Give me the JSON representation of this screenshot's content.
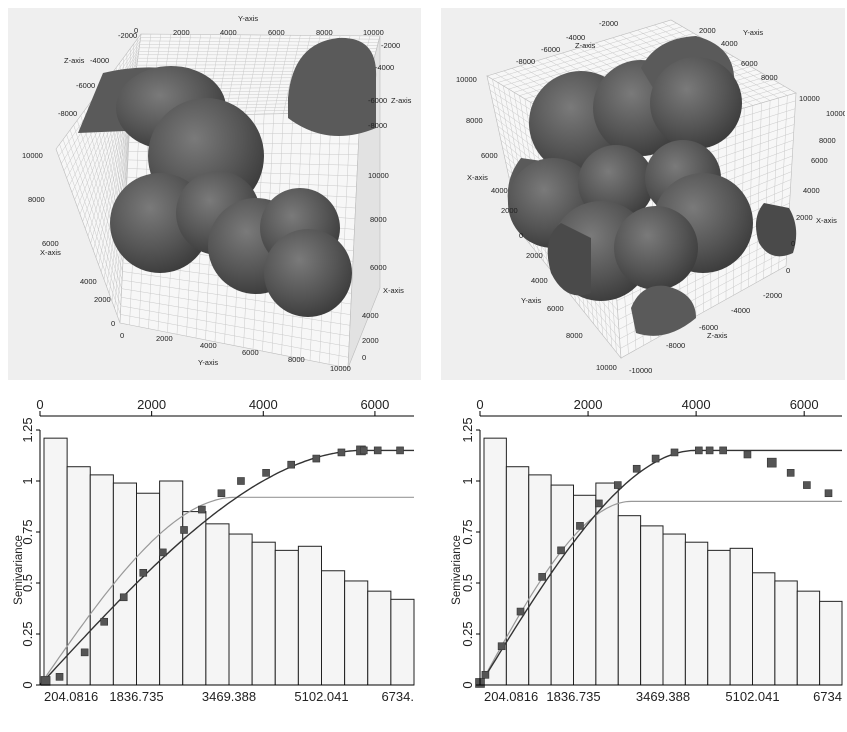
{
  "chart_data": [
    {
      "type": "scatter3d",
      "panel": "top-left",
      "axis_titles": {
        "x": "X-axis",
        "y": "Y-axis",
        "y_bottom": "Y-axis",
        "z": "Z-axis",
        "z_right": "Z-axis",
        "x_right": "X-axis"
      },
      "top_ticks": [
        "-2000",
        "2000",
        "4000",
        "6000",
        "8000",
        "10000",
        "0"
      ],
      "left_upper_ticks": [
        "-4000",
        "-6000",
        "-8000"
      ],
      "left_ticks": [
        "10000",
        "8000",
        "6000",
        "4000",
        "2000",
        "0"
      ],
      "bottom_ticks": [
        "0",
        "2000",
        "4000",
        "6000",
        "8000",
        "10000"
      ],
      "right_upper_ticks": [
        "-2000",
        "-4000",
        "-6000",
        "-8000",
        "10000"
      ],
      "right_ticks": [
        "8000",
        "6000",
        "4000",
        "2000",
        "0"
      ],
      "object_color": "#555555"
    },
    {
      "type": "scatter3d",
      "panel": "top-right",
      "axis_titles": {
        "x": "X-axis",
        "y": "Y-axis",
        "y_top": "Y-axis",
        "z": "Z-axis",
        "z_bottom": "Z-axis",
        "x_right": "X-axis"
      },
      "top_ticks": [
        "-2000",
        "-4000",
        "-6000",
        "-8000",
        "10000",
        "2000",
        "4000",
        "6000",
        "8000",
        "10000"
      ],
      "left_ticks": [
        "10000",
        "8000",
        "6000",
        "4000",
        "2000",
        "0"
      ],
      "left_lower_ticks": [
        "2000",
        "4000",
        "6000",
        "8000",
        "10000"
      ],
      "right_ticks": [
        "10000",
        "8000",
        "6000",
        "4000",
        "2000",
        "0"
      ],
      "bottom_ticks": [
        "-2000",
        "-4000",
        "-6000",
        "-8000",
        "-10000"
      ],
      "object_color": "#555555"
    },
    {
      "type": "bar",
      "panel": "bottom-left",
      "ylabel": "Semivariance",
      "ylim": [
        0,
        1.25
      ],
      "y_ticks": [
        "0",
        "0.25",
        "0.5",
        "0.75",
        "1",
        "1.25"
      ],
      "top_ticks": [
        "0",
        "2000",
        "4000",
        "6000"
      ],
      "top_tick_values": [
        0,
        2000,
        4000,
        6000
      ],
      "bottom_ticks": [
        "204.0816",
        "1836.735",
        "3469.388",
        "5102.041",
        "6734."
      ],
      "bars": [
        1.21,
        1.07,
        1.03,
        0.99,
        0.94,
        1.0,
        0.85,
        0.79,
        0.74,
        0.7,
        0.66,
        0.68,
        0.56,
        0.51,
        0.46,
        0.42
      ],
      "points_x": [
        100,
        350,
        800,
        1150,
        1500,
        1850,
        2200,
        2580,
        2900,
        3250,
        3600,
        4050,
        4500,
        4950,
        5400,
        5750,
        5800,
        6050,
        6450
      ],
      "points_y": [
        0.02,
        0.04,
        0.16,
        0.31,
        0.43,
        0.55,
        0.65,
        0.76,
        0.86,
        0.94,
        1.0,
        1.04,
        1.08,
        1.11,
        1.14,
        1.15,
        1.15,
        1.15,
        1.15
      ],
      "model_sill": 1.15,
      "model_range": 5800,
      "model2_sill": 0.92,
      "model2_range": 3500,
      "xlim": [
        0,
        6700
      ],
      "bar_color": "#f5f5f5",
      "point_color": "#555555"
    },
    {
      "type": "bar",
      "panel": "bottom-right",
      "ylabel": "Semivariance",
      "ylim": [
        0,
        1.25
      ],
      "y_ticks": [
        "0",
        "0.25",
        "0.5",
        "0.75",
        "1",
        "1.25"
      ],
      "top_ticks": [
        "0",
        "2000",
        "4000",
        "6000"
      ],
      "top_tick_values": [
        0,
        2000,
        4000,
        6000
      ],
      "bottom_ticks": [
        "204.0816",
        "1836.735",
        "3469.388",
        "5102.041",
        "6734"
      ],
      "bars": [
        1.21,
        1.07,
        1.03,
        0.98,
        0.93,
        0.99,
        0.83,
        0.78,
        0.74,
        0.7,
        0.66,
        0.67,
        0.55,
        0.51,
        0.46,
        0.41
      ],
      "points_x": [
        0,
        100,
        400,
        750,
        1150,
        1500,
        1850,
        2200,
        2550,
        2900,
        3250,
        3600,
        4050,
        4250,
        4500,
        4950,
        5400,
        5750,
        6050,
        6450
      ],
      "points_y": [
        0.01,
        0.05,
        0.19,
        0.36,
        0.53,
        0.66,
        0.78,
        0.89,
        0.98,
        1.06,
        1.11,
        1.14,
        1.15,
        1.15,
        1.15,
        1.13,
        1.09,
        1.04,
        0.98,
        0.94
      ],
      "model_sill": 1.15,
      "model_range": 4000,
      "model2_sill": 0.9,
      "model2_range": 2800,
      "xlim": [
        0,
        6700
      ],
      "bar_color": "#f5f5f5",
      "point_color": "#555555"
    }
  ]
}
